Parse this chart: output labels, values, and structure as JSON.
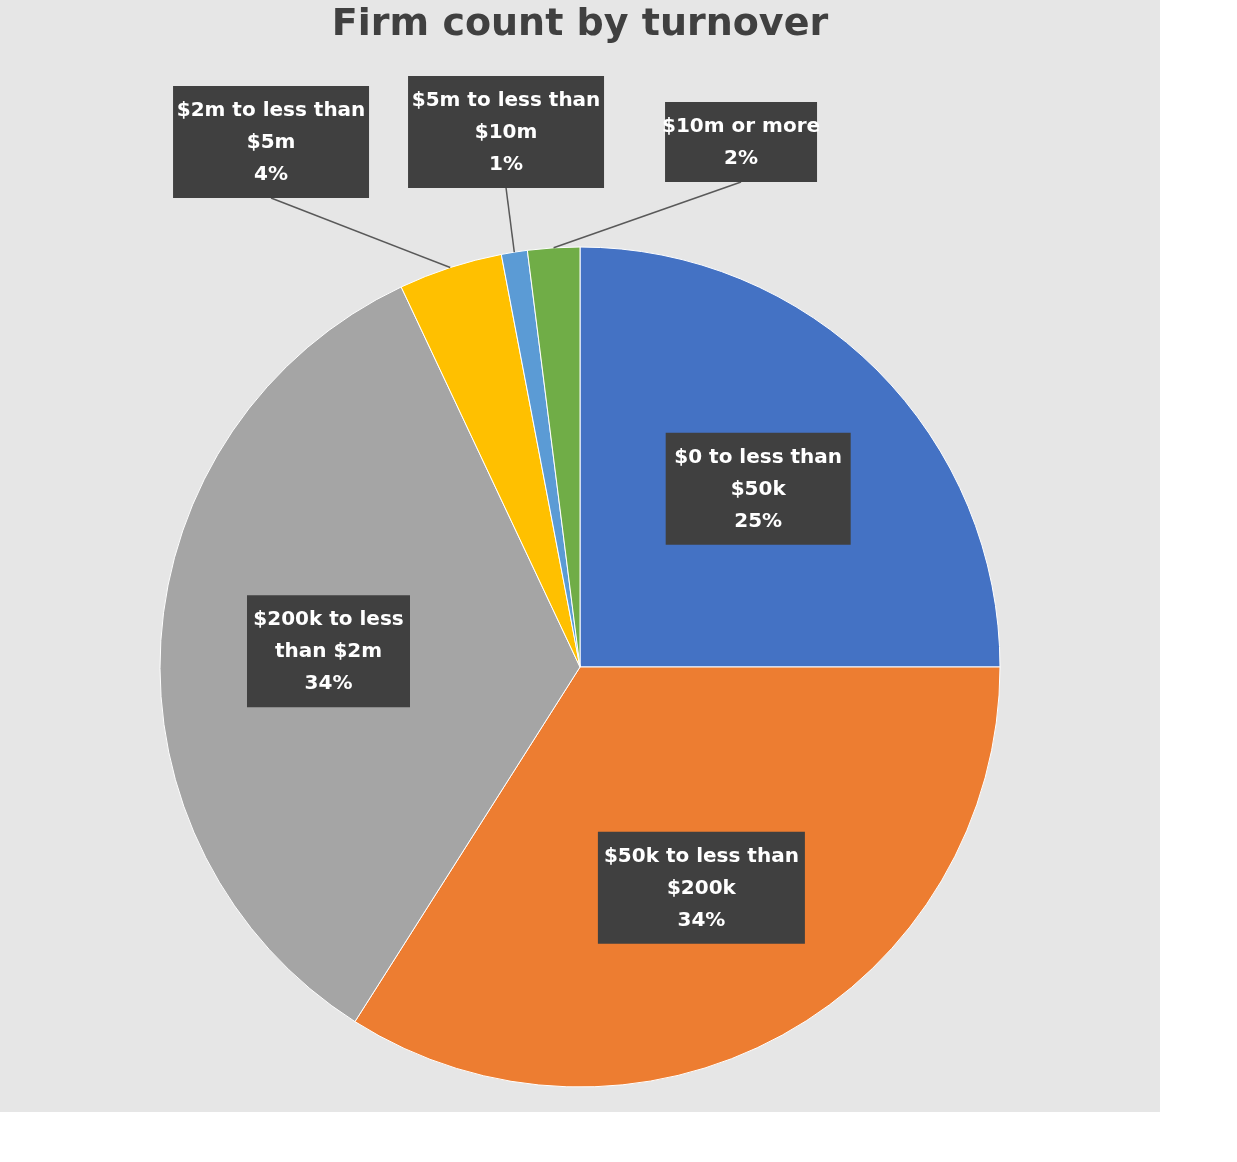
{
  "chart_data": {
    "type": "pie",
    "title": "Firm count by turnover",
    "categories": [
      "$0 to less than $50k",
      "$50k to less than $200k",
      "$200k to less than $2m",
      "$2m to less than $5m",
      "$5m to less than $10m",
      "$10m or more"
    ],
    "values": [
      25,
      34,
      34,
      4,
      1,
      2
    ],
    "value_labels": [
      "25%",
      "34%",
      "34%",
      "4%",
      "1%",
      "2%"
    ],
    "colors": [
      "#4472c4",
      "#ed7d31",
      "#a5a5a5",
      "#ffc000",
      "#5b9bd5",
      "#70ad47"
    ]
  }
}
